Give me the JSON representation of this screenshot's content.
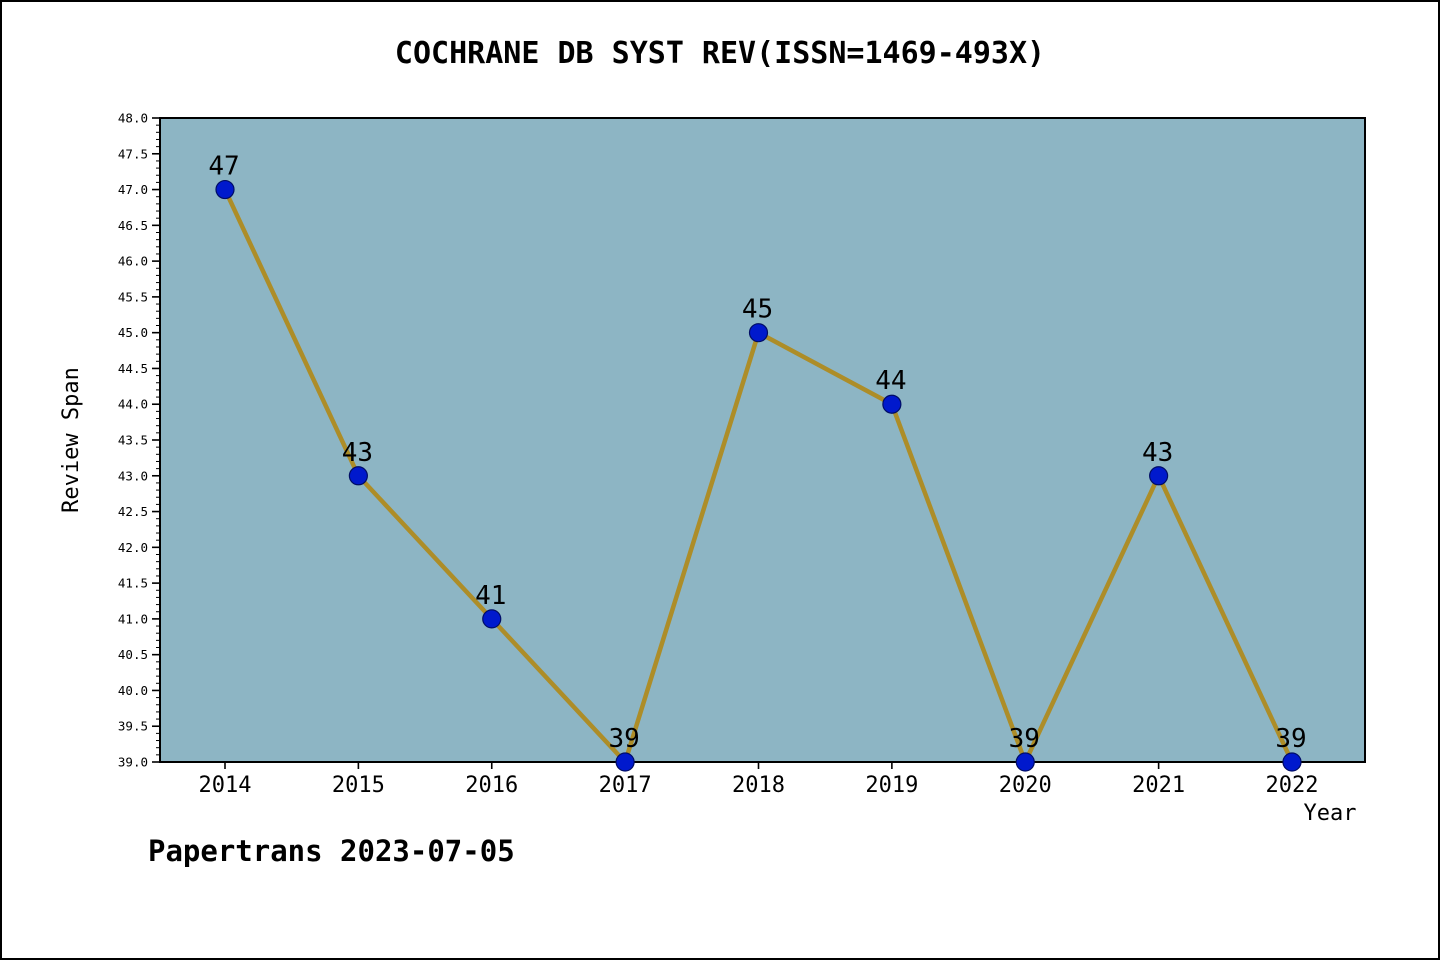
{
  "title": "COCHRANE DB SYST REV(ISSN=1469-493X)",
  "footer": "Papertrans 2023-07-05",
  "chart_data": {
    "type": "line",
    "title": "COCHRANE DB SYST REV(ISSN=1469-493X)",
    "categories": [
      "2014",
      "2015",
      "2016",
      "2017",
      "2018",
      "2019",
      "2020",
      "2021",
      "2022"
    ],
    "values": [
      47,
      43,
      41,
      39,
      45,
      44,
      39,
      43,
      39
    ],
    "point_labels": [
      "47",
      "43",
      "41",
      "39",
      "45",
      "44",
      "39",
      "43",
      "39"
    ],
    "xlabel": "Year",
    "ylabel": "Review Span",
    "ylim": [
      39.0,
      48.0
    ],
    "ytick_step": 0.5,
    "yminor_step": 0.1,
    "grid": "off",
    "legend": "none",
    "colors": {
      "line": "#ad8d28",
      "marker_fill": "#0019cd",
      "marker_edge": "#000d66",
      "plot_bg": "#8db5c4",
      "axis": "#000000"
    }
  }
}
